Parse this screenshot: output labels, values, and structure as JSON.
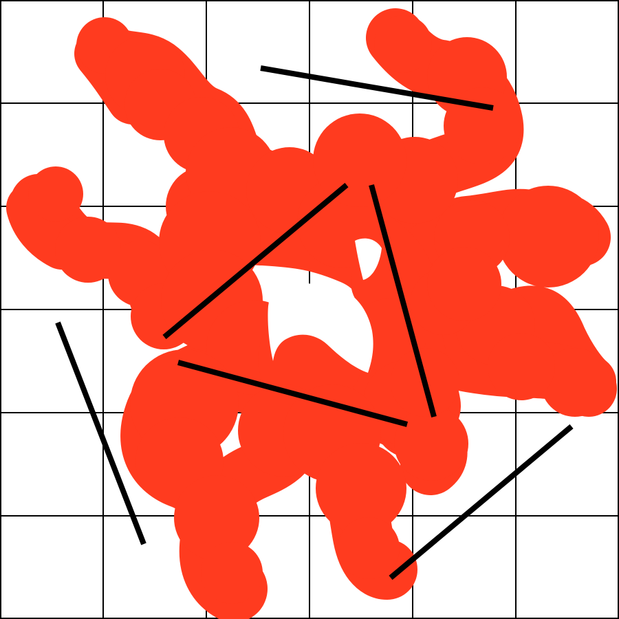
{
  "artwork": {
    "grid": {
      "rows": 6,
      "columns": 6,
      "line_color": "#000000"
    },
    "blob": {
      "shape": "organic-splat",
      "color": "#ff3b1f"
    },
    "strokes": {
      "count": 6,
      "color": "#000000"
    }
  }
}
